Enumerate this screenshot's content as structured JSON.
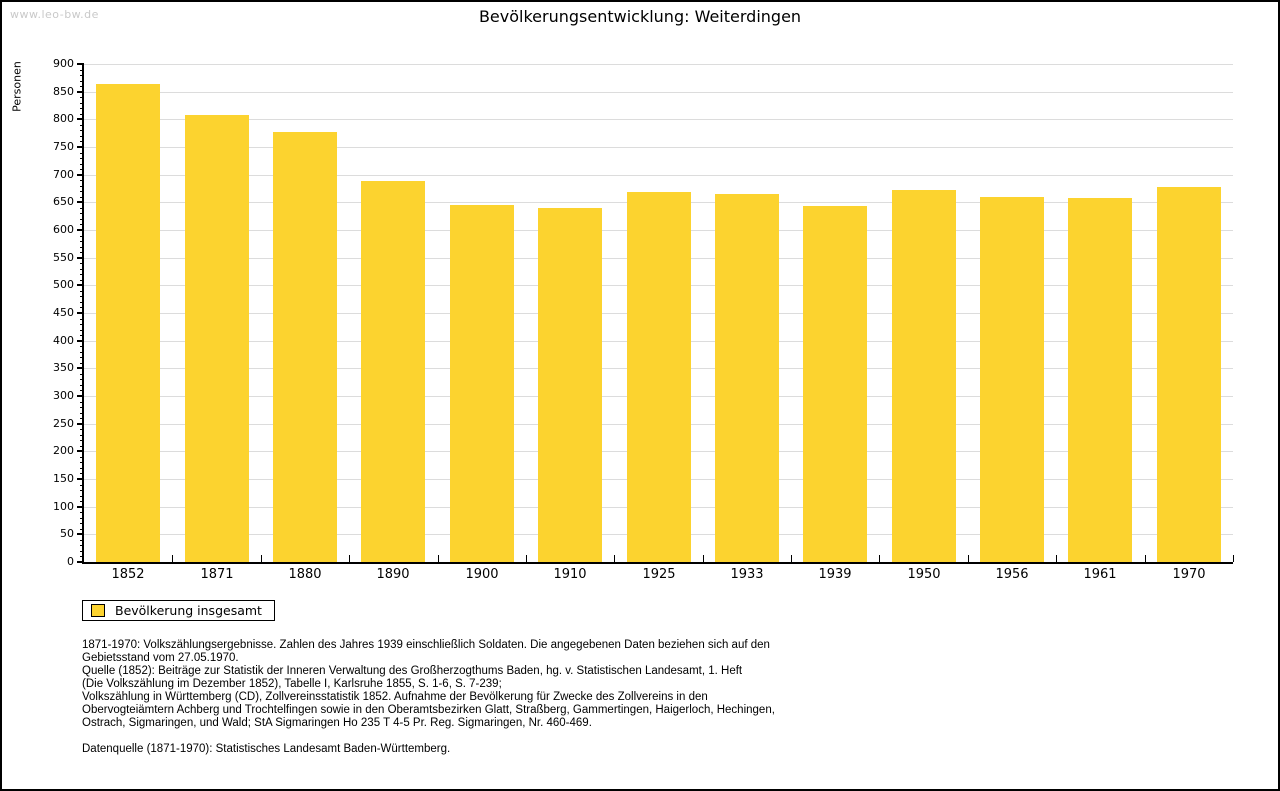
{
  "watermark": "www.leo-bw.de",
  "chart_data": {
    "type": "bar",
    "title": "Bevölkerungsentwicklung: Weiterdingen",
    "ylabel": "Personen",
    "xlabel": "",
    "ylim": [
      0,
      900
    ],
    "ytick_major_step": 50,
    "ytick_minor_step": 10,
    "grid": true,
    "legend_position": "bottom-left",
    "categories": [
      "1852",
      "1871",
      "1880",
      "1890",
      "1900",
      "1910",
      "1925",
      "1933",
      "1939",
      "1950",
      "1956",
      "1961",
      "1970"
    ],
    "series": [
      {
        "name": "Bevölkerung insgesamt",
        "color": "#FCD32F",
        "values": [
          863,
          808,
          778,
          688,
          645,
          639,
          668,
          665,
          643,
          672,
          659,
          657,
          677
        ]
      }
    ]
  },
  "colors": {
    "bar": "#FCD32F",
    "gridline": "#DCDCDC",
    "axis": "#000000",
    "watermark": "#C9C9C9"
  },
  "footnotes": {
    "lines": [
      "1871-1970: Volkszählungsergebnisse. Zahlen des Jahres 1939 einschließlich Soldaten. Die angegebenen Daten beziehen sich auf den",
      "Gebietsstand vom 27.05.1970.",
      "Quelle (1852): Beiträge zur Statistik der Inneren Verwaltung des Großherzogthums Baden, hg. v. Statistischen Landesamt, 1. Heft",
      "(Die Volkszählung im Dezember 1852), Tabelle I, Karlsruhe 1855, S. 1-6, S. 7-239;",
      "Volkszählung in Württemberg (CD), Zollvereinsstatistik 1852. Aufnahme der Bevölkerung für Zwecke des Zollvereins in den",
      "Obervogteiämtern Achberg und Trochtelfingen sowie in den Oberamtsbezirken Glatt, Straßberg, Gammertingen, Haigerloch, Hechingen,",
      "Ostrach, Sigmaringen, und Wald; StA Sigmaringen Ho 235 T 4-5 Pr. Reg. Sigmaringen, Nr. 460-469."
    ],
    "datenquelle": "Datenquelle (1871-1970): Statistisches Landesamt Baden-Württemberg."
  }
}
